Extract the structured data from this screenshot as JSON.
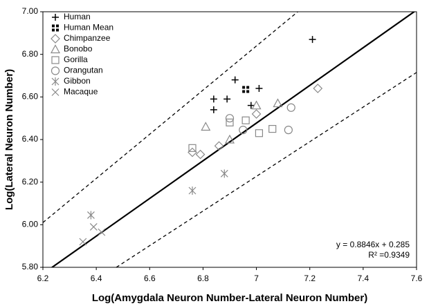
{
  "chart_data": {
    "type": "scatter",
    "x_label": "Log(Amygdala Neuron Number-Lateral Neuron Number)",
    "y_label": "Log(Lateral Neuron Number)",
    "xlim": [
      6.2,
      7.6
    ],
    "ylim": [
      5.8,
      7.0
    ],
    "xticks": [
      6.2,
      6.4,
      6.6,
      6.8,
      7,
      7.2,
      7.4,
      7.6
    ],
    "yticks": [
      {
        "value": 5.8,
        "label": "5.80"
      },
      {
        "value": 6.0,
        "label": "6.00"
      },
      {
        "value": 6.2,
        "label": "6.20"
      },
      {
        "value": 6.4,
        "label": "6.40"
      },
      {
        "value": 6.6,
        "label": "6.60"
      },
      {
        "value": 6.8,
        "label": "6.80"
      },
      {
        "value": 7.0,
        "label": "7.00"
      }
    ],
    "legend": "upper left",
    "fit": {
      "slope": 0.8846,
      "intercept": 0.285,
      "color": "#000000"
    },
    "bands": [
      {
        "x": [
          6.2,
          7.155
        ],
        "y": [
          6.01,
          7.0
        ]
      },
      {
        "x": [
          6.475,
          7.6
        ],
        "y": [
          5.8,
          6.715
        ]
      }
    ],
    "annotations": [
      "y = 0.8846x + 0.285",
      "R² =0.9349"
    ],
    "series": [
      {
        "name": "Human",
        "marker": "plus",
        "color": "#000000",
        "x": [
          7.21,
          6.92,
          6.84,
          6.84,
          7.01,
          6.98,
          6.89
        ],
        "values": [
          6.87,
          6.68,
          6.59,
          6.54,
          6.64,
          6.56,
          6.59
        ]
      },
      {
        "name": "Human Mean",
        "marker": "squares",
        "color": "#000000",
        "x": [
          6.96
        ],
        "values": [
          6.635
        ]
      },
      {
        "name": "Chimpanzee",
        "marker": "diamond",
        "color": "#888888",
        "x": [
          7.23,
          7.0,
          6.86,
          6.79,
          6.76
        ],
        "values": [
          6.64,
          6.52,
          6.37,
          6.33,
          6.34
        ]
      },
      {
        "name": "Bonobo",
        "marker": "triangle",
        "color": "#888888",
        "x": [
          7.08,
          7.0,
          6.81,
          6.9
        ],
        "values": [
          6.57,
          6.56,
          6.46,
          6.4
        ]
      },
      {
        "name": "Gorilla",
        "marker": "square",
        "color": "#888888",
        "x": [
          6.9,
          6.96,
          7.01,
          7.06,
          6.76
        ],
        "values": [
          6.48,
          6.49,
          6.43,
          6.45,
          6.36
        ]
      },
      {
        "name": "Orangutan",
        "marker": "circle",
        "color": "#888888",
        "x": [
          6.9,
          6.95,
          7.13,
          7.12
        ],
        "values": [
          6.5,
          6.445,
          6.55,
          6.445
        ]
      },
      {
        "name": "Gibbon",
        "marker": "asterisk",
        "color": "#888888",
        "x": [
          6.76,
          6.88,
          6.38
        ],
        "values": [
          6.16,
          6.24,
          6.045
        ]
      },
      {
        "name": "Macaque",
        "marker": "cross",
        "color": "#888888",
        "x": [
          6.35,
          6.39,
          6.42
        ],
        "values": [
          5.92,
          5.99,
          5.965
        ]
      }
    ]
  }
}
